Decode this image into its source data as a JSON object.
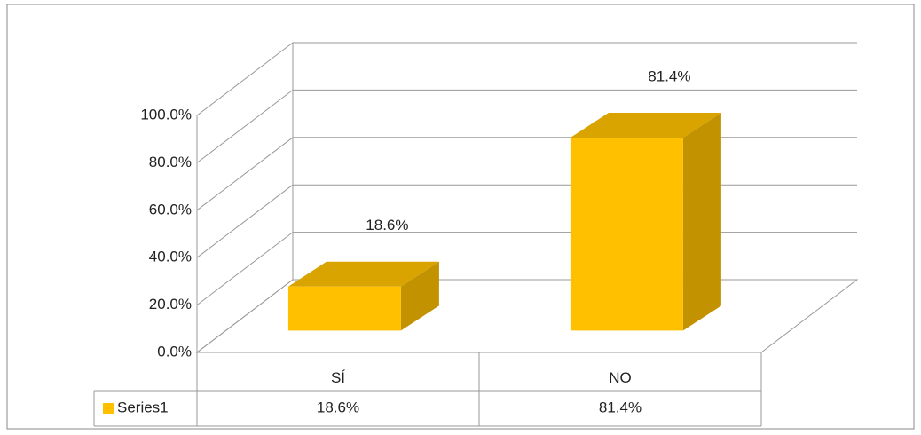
{
  "chart_data": {
    "type": "bar3d",
    "categories": [
      "SÍ",
      "NO"
    ],
    "series": [
      {
        "name": "Series1",
        "color": "#FFC000",
        "values": [
          18.6,
          81.4
        ],
        "value_labels": [
          "18.6%",
          "81.4%"
        ]
      }
    ],
    "ylim": [
      0,
      100
    ],
    "yticks": [
      {
        "value": 0,
        "label": "0.0%"
      },
      {
        "value": 20,
        "label": "20.0%"
      },
      {
        "value": 40,
        "label": "40.0%"
      },
      {
        "value": 60,
        "label": "60.0%"
      },
      {
        "value": 80,
        "label": "80.0%"
      },
      {
        "value": 100,
        "label": "100.0%"
      }
    ],
    "grid": true,
    "data_table": true
  }
}
